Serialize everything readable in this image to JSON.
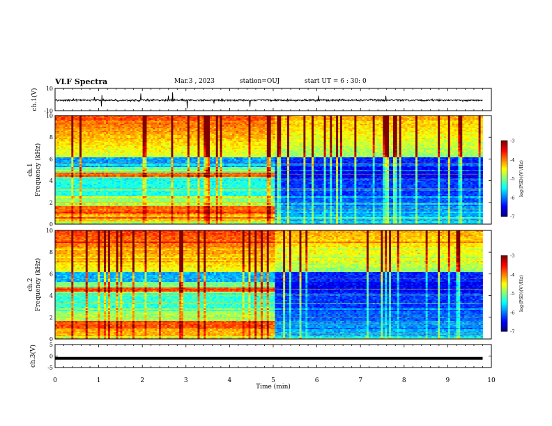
{
  "header": {
    "title": "VLF Spectra",
    "date": "Mar.3 , 2023",
    "station": "station=OUJ",
    "start": "start UT = 6 : 30: 0"
  },
  "chart_data": [
    {
      "type": "line",
      "name": "ch1-waveform",
      "ylabel": "ch.1(V)",
      "ylim": [
        -10,
        10
      ],
      "yticks": [
        "10",
        "-10"
      ],
      "xlim": [
        0,
        10
      ],
      "baseline": 0,
      "note": "noisy waveform near 0 V with occasional spikes, recording ends near 9.8 min"
    },
    {
      "type": "heatmap",
      "name": "ch1-spectrogram",
      "ylabel": "ch.1",
      "ylabel2": "Frequency (kHz)",
      "ylim": [
        0,
        10
      ],
      "yticks": [
        "0",
        "2",
        "4",
        "6",
        "8",
        "10"
      ],
      "xlim": [
        0,
        10
      ],
      "data_end_min": 9.8,
      "regime_change_min": 5.05,
      "colorbar": {
        "label": "log(PSD)(V²/Hz)",
        "min": -7,
        "max": -3,
        "ticks": [
          "-3",
          "-4",
          "-5",
          "-6",
          "-7"
        ]
      }
    },
    {
      "type": "heatmap",
      "name": "ch2-spectrogram",
      "ylabel": "ch.2",
      "ylabel2": "Frequency (kHz)",
      "ylim": [
        0,
        10
      ],
      "yticks": [
        "0",
        "2",
        "4",
        "6",
        "8",
        "10"
      ],
      "xlim": [
        0,
        10
      ],
      "data_end_min": 9.8,
      "regime_change_min": 5.05,
      "colorbar": {
        "label": "log(PSD)(V²/Hz)",
        "min": -7,
        "max": -3,
        "ticks": [
          "-3",
          "-4",
          "-5",
          "-6",
          "-7"
        ]
      }
    },
    {
      "type": "line",
      "name": "ch3-waveform",
      "ylabel": "ch.3(V)",
      "ylim": [
        -5,
        5
      ],
      "yticks": [
        "5",
        "0",
        "-5"
      ],
      "xlim": [
        0,
        10
      ],
      "baseline": -1
    }
  ],
  "xaxis": {
    "label": "Time (min)",
    "ticks": [
      "0",
      "1",
      "2",
      "3",
      "4",
      "5",
      "6",
      "7",
      "8",
      "9",
      "10"
    ]
  }
}
